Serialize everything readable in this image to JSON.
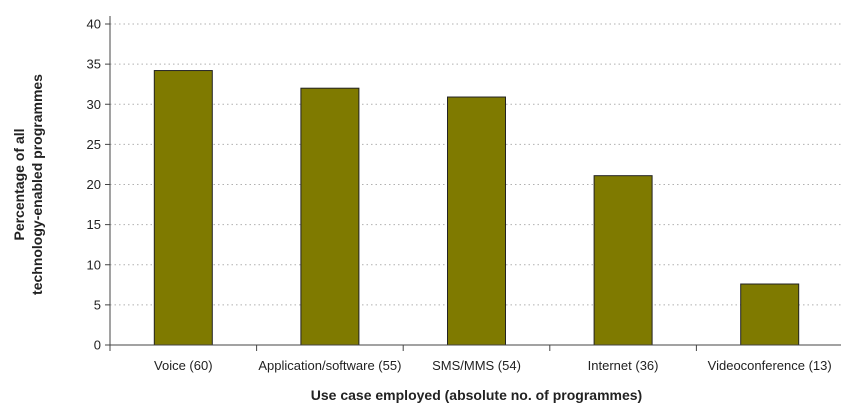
{
  "chart_data": {
    "type": "bar",
    "categories": [
      "Voice (60)",
      "Application/software (55)",
      "SMS/MMS (54)",
      "Internet (36)",
      "Videoconference (13)"
    ],
    "values": [
      34.2,
      32.0,
      30.9,
      21.1,
      7.6
    ],
    "xlabel": "Use case employed (absolute no. of programmes)",
    "ylabel_lines": [
      "Percentage of all",
      "technology-enabled programmes"
    ],
    "ylim": [
      0,
      40
    ],
    "yticks": [
      0,
      5,
      10,
      15,
      20,
      25,
      30,
      35,
      40
    ],
    "grid": true,
    "bar_color": "#7f7a00"
  }
}
